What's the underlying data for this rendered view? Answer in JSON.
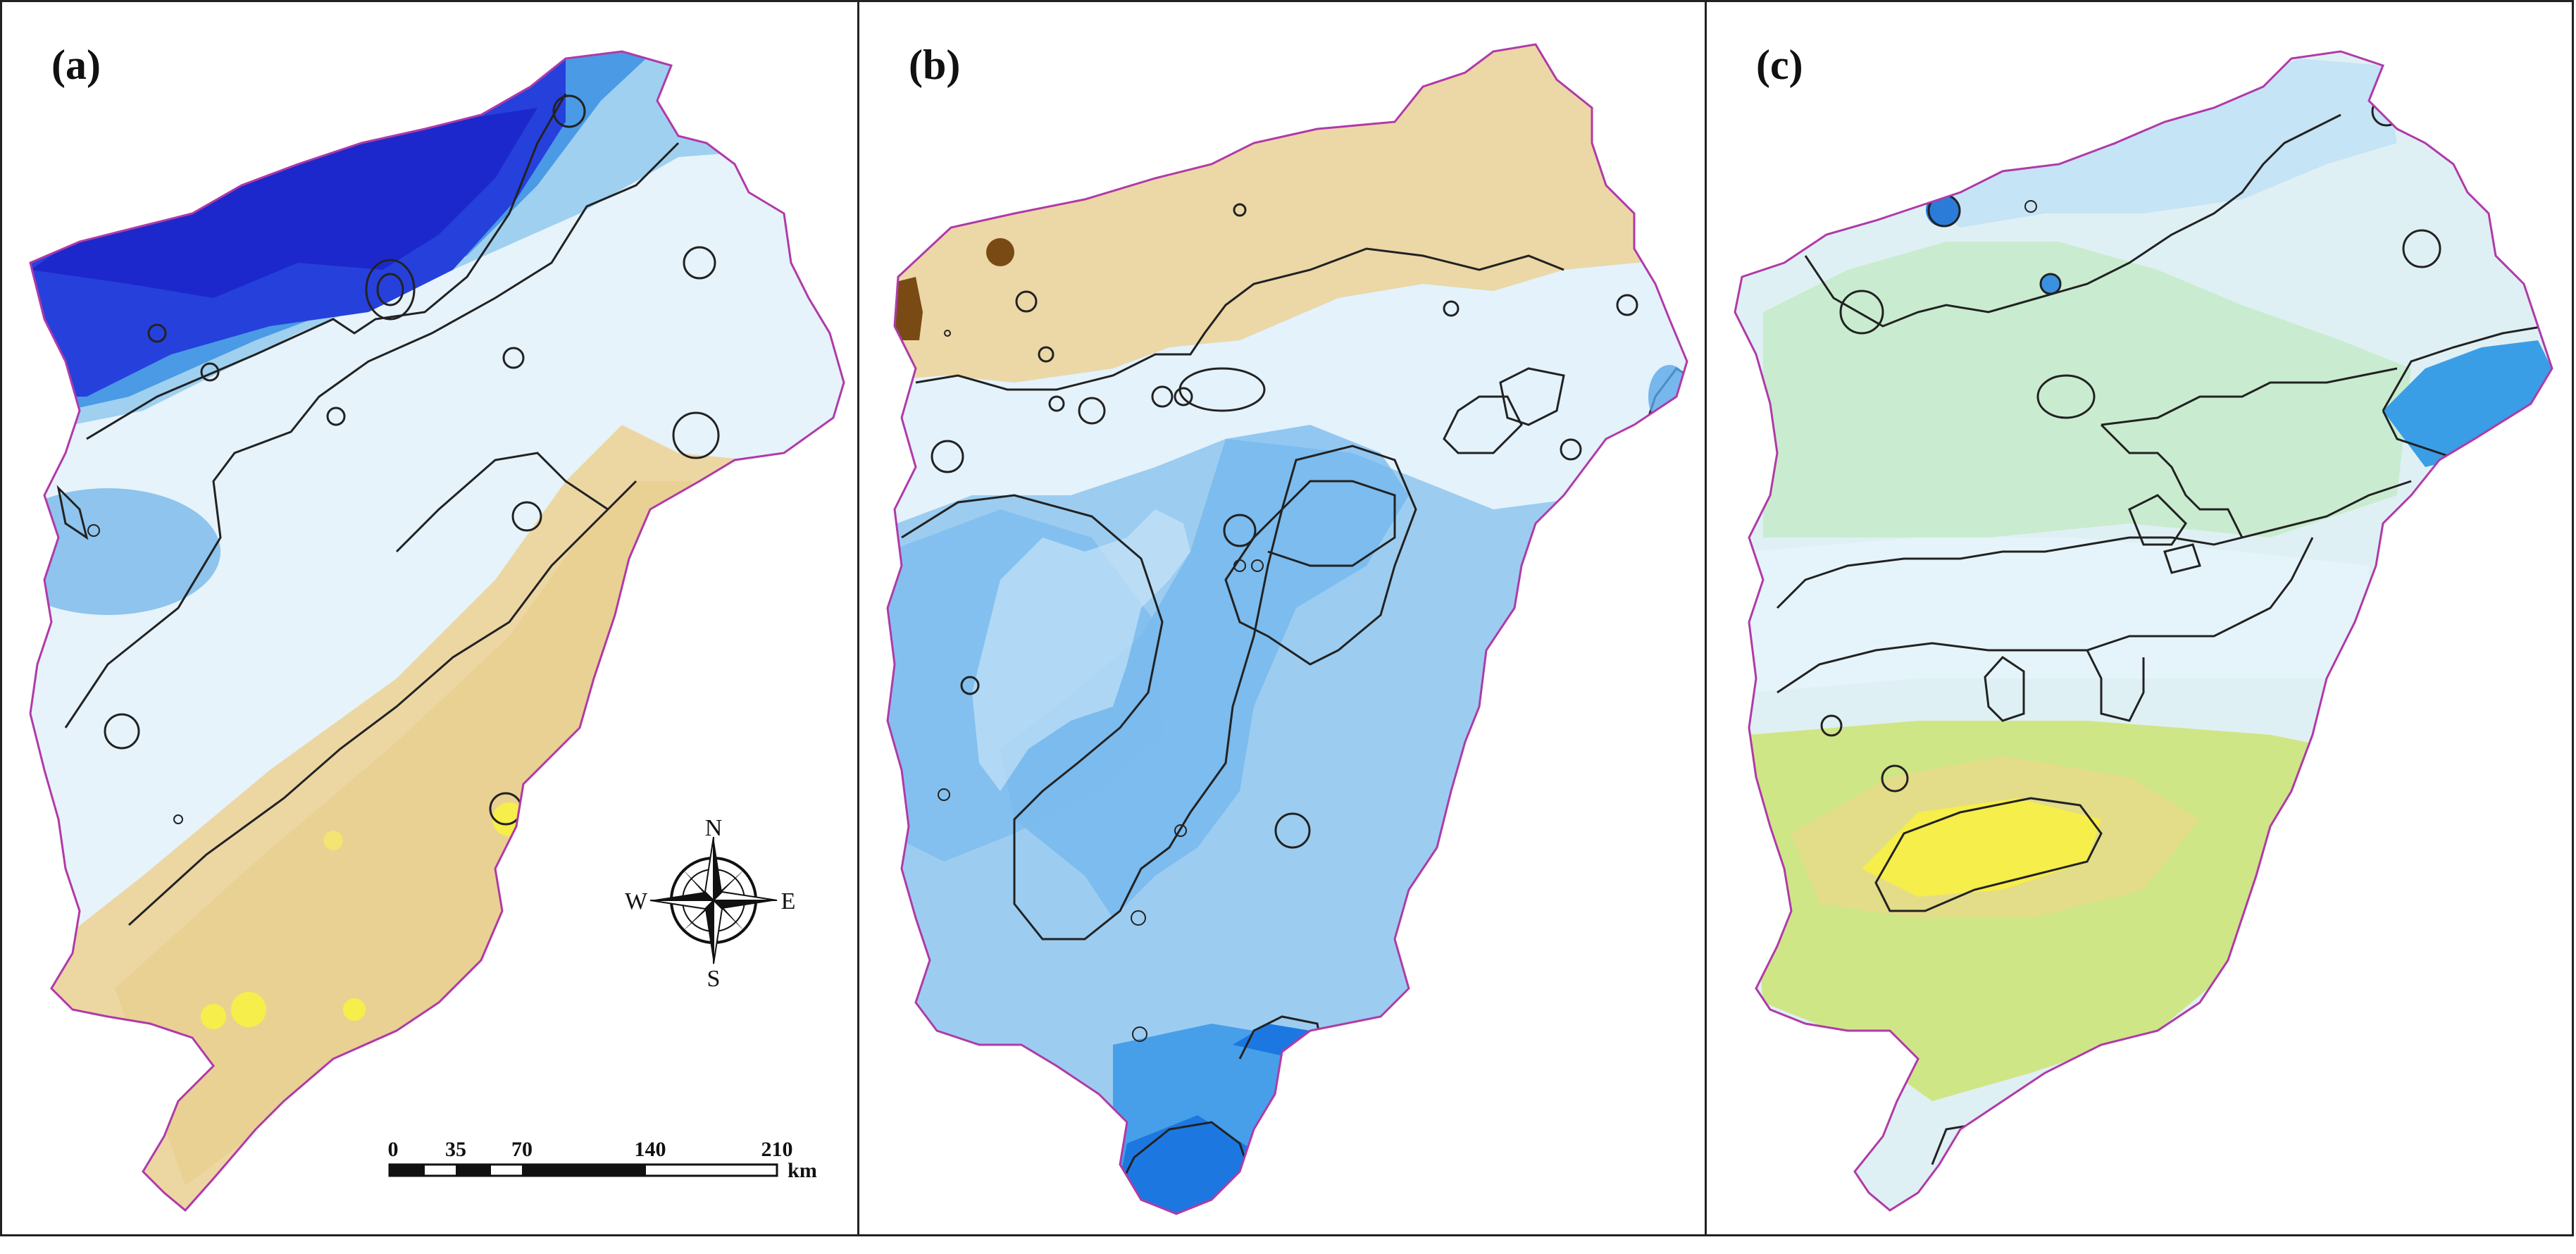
{
  "figure": {
    "panels": [
      {
        "label": "(a)"
      },
      {
        "label": "(b)"
      },
      {
        "label": "(c)"
      }
    ]
  },
  "compass": {
    "north": "N",
    "south": "S",
    "east": "E",
    "west": "W"
  },
  "scale_bar": {
    "ticks": [
      "0",
      "35",
      "70",
      "140",
      "210"
    ],
    "unit": "km"
  },
  "colors": {
    "dark_blue": "#1b2fd6",
    "mid_blue": "#3f9ee6",
    "light_blue": "#cfe8f8",
    "tan": "#ecd39a",
    "yellow": "#f6ee4a",
    "green": "#b9e39c",
    "brown": "#7a4a14",
    "boundary": "#b03aa8",
    "contour": "#222222"
  }
}
